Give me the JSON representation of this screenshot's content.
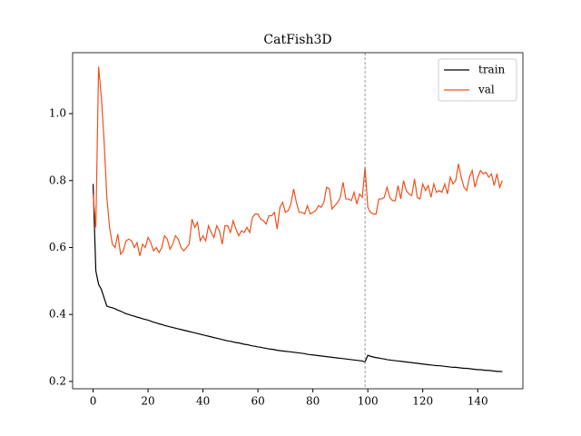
{
  "chart_data": {
    "type": "line",
    "title": "CatFish3D",
    "x": [
      0,
      1,
      2,
      3,
      4,
      5,
      6,
      7,
      8,
      9,
      10,
      11,
      12,
      13,
      14,
      15,
      16,
      17,
      18,
      19,
      20,
      21,
      22,
      23,
      24,
      25,
      26,
      27,
      28,
      29,
      30,
      31,
      32,
      33,
      34,
      35,
      36,
      37,
      38,
      39,
      40,
      41,
      42,
      43,
      44,
      45,
      46,
      47,
      48,
      49,
      50,
      51,
      52,
      53,
      54,
      55,
      56,
      57,
      58,
      59,
      60,
      61,
      62,
      63,
      64,
      65,
      66,
      67,
      68,
      69,
      70,
      71,
      72,
      73,
      74,
      75,
      76,
      77,
      78,
      79,
      80,
      81,
      82,
      83,
      84,
      85,
      86,
      87,
      88,
      89,
      90,
      91,
      92,
      93,
      94,
      95,
      96,
      97,
      98,
      99,
      100,
      101,
      102,
      103,
      104,
      105,
      106,
      107,
      108,
      109,
      110,
      111,
      112,
      113,
      114,
      115,
      116,
      117,
      118,
      119,
      120,
      121,
      122,
      123,
      124,
      125,
      126,
      127,
      128,
      129,
      130,
      131,
      132,
      133,
      134,
      135,
      136,
      137,
      138,
      139,
      140,
      141,
      142,
      143,
      144,
      145,
      146,
      147,
      148,
      149
    ],
    "series": [
      {
        "name": "train",
        "color": "#000000",
        "values": [
          0.79,
          0.53,
          0.49,
          0.475,
          0.45,
          0.425,
          0.422,
          0.42,
          0.417,
          0.413,
          0.41,
          0.406,
          0.402,
          0.4,
          0.397,
          0.395,
          0.392,
          0.39,
          0.387,
          0.385,
          0.383,
          0.38,
          0.377,
          0.375,
          0.372,
          0.37,
          0.367,
          0.365,
          0.363,
          0.361,
          0.359,
          0.357,
          0.355,
          0.353,
          0.351,
          0.349,
          0.347,
          0.345,
          0.343,
          0.341,
          0.339,
          0.337,
          0.335,
          0.333,
          0.331,
          0.329,
          0.327,
          0.325,
          0.323,
          0.321,
          0.32,
          0.318,
          0.316,
          0.315,
          0.313,
          0.311,
          0.31,
          0.308,
          0.306,
          0.305,
          0.303,
          0.302,
          0.3,
          0.299,
          0.297,
          0.296,
          0.295,
          0.293,
          0.292,
          0.291,
          0.29,
          0.289,
          0.288,
          0.287,
          0.286,
          0.285,
          0.284,
          0.283,
          0.281,
          0.28,
          0.279,
          0.278,
          0.277,
          0.276,
          0.275,
          0.274,
          0.273,
          0.272,
          0.271,
          0.27,
          0.269,
          0.268,
          0.267,
          0.266,
          0.265,
          0.264,
          0.263,
          0.262,
          0.261,
          0.258,
          0.278,
          0.275,
          0.273,
          0.271,
          0.27,
          0.268,
          0.267,
          0.265,
          0.264,
          0.263,
          0.262,
          0.261,
          0.26,
          0.259,
          0.258,
          0.257,
          0.256,
          0.255,
          0.254,
          0.253,
          0.252,
          0.251,
          0.25,
          0.249,
          0.248,
          0.247,
          0.247,
          0.246,
          0.245,
          0.244,
          0.243,
          0.242,
          0.242,
          0.241,
          0.24,
          0.239,
          0.239,
          0.238,
          0.237,
          0.236,
          0.235,
          0.235,
          0.234,
          0.233,
          0.233,
          0.232,
          0.231,
          0.23,
          0.23,
          0.229
        ]
      },
      {
        "name": "val",
        "color": "#f0501a",
        "values": [
          0.76,
          0.66,
          1.14,
          1.05,
          0.92,
          0.75,
          0.66,
          0.61,
          0.6,
          0.64,
          0.58,
          0.59,
          0.62,
          0.625,
          0.62,
          0.6,
          0.615,
          0.575,
          0.61,
          0.6,
          0.63,
          0.615,
          0.59,
          0.6,
          0.585,
          0.6,
          0.635,
          0.625,
          0.595,
          0.61,
          0.635,
          0.625,
          0.6,
          0.59,
          0.6,
          0.61,
          0.685,
          0.66,
          0.675,
          0.62,
          0.635,
          0.62,
          0.665,
          0.645,
          0.63,
          0.665,
          0.65,
          0.61,
          0.665,
          0.665,
          0.645,
          0.68,
          0.655,
          0.635,
          0.65,
          0.645,
          0.66,
          0.645,
          0.69,
          0.7,
          0.7,
          0.685,
          0.68,
          0.67,
          0.695,
          0.695,
          0.705,
          0.655,
          0.72,
          0.735,
          0.705,
          0.71,
          0.73,
          0.775,
          0.735,
          0.705,
          0.705,
          0.7,
          0.725,
          0.7,
          0.705,
          0.71,
          0.725,
          0.72,
          0.735,
          0.78,
          0.775,
          0.715,
          0.725,
          0.735,
          0.75,
          0.795,
          0.745,
          0.745,
          0.74,
          0.765,
          0.73,
          0.76,
          0.75,
          0.84,
          0.72,
          0.705,
          0.7,
          0.7,
          0.745,
          0.745,
          0.75,
          0.78,
          0.75,
          0.74,
          0.74,
          0.785,
          0.745,
          0.8,
          0.77,
          0.76,
          0.755,
          0.805,
          0.75,
          0.745,
          0.79,
          0.77,
          0.785,
          0.75,
          0.79,
          0.765,
          0.77,
          0.765,
          0.79,
          0.76,
          0.81,
          0.79,
          0.8,
          0.85,
          0.81,
          0.78,
          0.77,
          0.81,
          0.83,
          0.78,
          0.81,
          0.83,
          0.82,
          0.825,
          0.81,
          0.82,
          0.785,
          0.82,
          0.78,
          0.8
        ]
      }
    ],
    "vline": 99,
    "xlim": [
      -7.45,
      156.45
    ],
    "xticks": [
      0,
      20,
      40,
      60,
      80,
      100,
      120,
      140
    ],
    "ylim": [
      0.178,
      1.182
    ],
    "yticks": [
      0.2,
      0.4,
      0.6,
      0.8,
      {
        "value": 1.0,
        "label": "1.0"
      }
    ],
    "legend": "upper right"
  }
}
